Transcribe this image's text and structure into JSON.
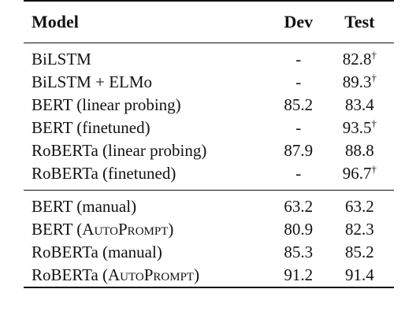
{
  "table": {
    "headers": {
      "model": "Model",
      "dev": "Dev",
      "test": "Test"
    },
    "group1": [
      {
        "model": "BiLSTM",
        "dev": "-",
        "test": "82.8",
        "test_dagger": "†"
      },
      {
        "model": "BiLSTM + ELMo",
        "dev": "-",
        "test": "89.3",
        "test_dagger": "†"
      },
      {
        "model": "BERT (linear probing)",
        "dev": "85.2",
        "test": "83.4",
        "test_dagger": ""
      },
      {
        "model": "BERT (finetuned)",
        "dev": "-",
        "test": "93.5",
        "test_dagger": "†"
      },
      {
        "model": "RoBERTa (linear probing)",
        "dev": "87.9",
        "test": "88.8",
        "test_dagger": ""
      },
      {
        "model": "RoBERTa (finetuned)",
        "dev": "-",
        "test": "96.7",
        "test_dagger": "†"
      }
    ],
    "group2": [
      {
        "model_prefix": "BERT (manual)",
        "model_sc": "",
        "model_suffix": "",
        "dev": "63.2",
        "test": "63.2"
      },
      {
        "model_prefix": "BERT (",
        "model_sc": "AutoPrompt",
        "model_suffix": ")",
        "dev": "80.9",
        "test": "82.3"
      },
      {
        "model_prefix": "RoBERTa (manual)",
        "model_sc": "",
        "model_suffix": "",
        "dev": "85.3",
        "test": "85.2"
      },
      {
        "model_prefix": "RoBERTa (",
        "model_sc": "AutoPrompt",
        "model_suffix": ")",
        "dev": "91.2",
        "test": "91.4"
      }
    ]
  }
}
